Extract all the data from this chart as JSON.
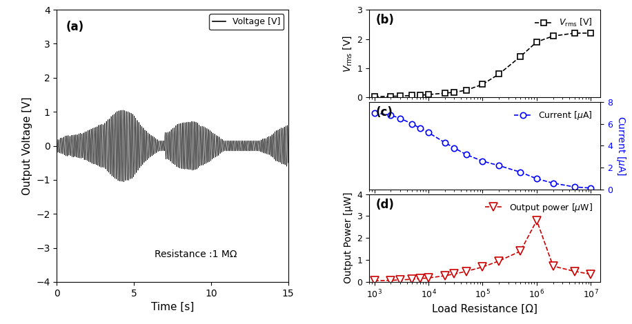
{
  "panel_a": {
    "title": "(a)",
    "xlabel": "Time [s]",
    "ylabel": "Output Voltage [V]",
    "xlim": [
      0,
      15
    ],
    "ylim": [
      -4,
      4
    ],
    "yticks": [
      -4,
      -3,
      -2,
      -1,
      0,
      1,
      2,
      3,
      4
    ],
    "xticks": [
      0,
      5,
      10,
      15
    ],
    "annotation": "Resistance :1 MΩ",
    "legend_label": "Voltage [V]",
    "line_color": "black",
    "freq": 10,
    "noise_seed": 42
  },
  "panel_b": {
    "title": "(b)",
    "ylabel": "V$_{rms}$ [V]",
    "ylim": [
      0,
      3
    ],
    "yticks": [
      0,
      1,
      2,
      3
    ],
    "legend_label": "V_rms [V]",
    "line_color": "black",
    "marker": "s",
    "resistance": [
      1000,
      2000,
      3000,
      5000,
      7000,
      10000,
      20000,
      30000,
      50000,
      100000,
      200000,
      500000,
      1000000,
      2000000,
      5000000,
      10000000
    ],
    "vrms": [
      0.03,
      0.04,
      0.05,
      0.07,
      0.08,
      0.1,
      0.15,
      0.18,
      0.25,
      0.45,
      0.8,
      1.4,
      1.9,
      2.1,
      2.2,
      2.2
    ]
  },
  "panel_c": {
    "title": "(c)",
    "ylabel": "Current [μA]",
    "ylim": [
      0,
      8
    ],
    "yticks": [
      0,
      2,
      4,
      6,
      8
    ],
    "legend_label": "Current [μA]",
    "line_color": "blue",
    "marker": "o",
    "resistance": [
      1000,
      2000,
      3000,
      5000,
      7000,
      10000,
      20000,
      30000,
      50000,
      100000,
      200000,
      500000,
      1000000,
      2000000,
      5000000,
      10000000
    ],
    "current": [
      7.0,
      6.8,
      6.5,
      6.0,
      5.6,
      5.2,
      4.3,
      3.8,
      3.2,
      2.6,
      2.2,
      1.6,
      1.0,
      0.6,
      0.25,
      0.15
    ]
  },
  "panel_d": {
    "title": "(d)",
    "xlabel": "Load Resistance [Ω]",
    "ylabel": "Output Power [μW]",
    "ylim": [
      0,
      4
    ],
    "yticks": [
      0,
      1,
      2,
      3,
      4
    ],
    "legend_label": "Output power [μW]",
    "line_color": "#cc0000",
    "marker": "v",
    "resistance": [
      1000,
      2000,
      3000,
      5000,
      7000,
      10000,
      20000,
      30000,
      50000,
      100000,
      200000,
      500000,
      1000000,
      2000000,
      5000000,
      10000000
    ],
    "power": [
      0.05,
      0.07,
      0.09,
      0.12,
      0.15,
      0.18,
      0.28,
      0.36,
      0.48,
      0.68,
      0.95,
      1.4,
      2.8,
      0.72,
      0.48,
      0.35
    ]
  },
  "xlim_log": [
    800,
    15000000
  ],
  "background_color": "white"
}
